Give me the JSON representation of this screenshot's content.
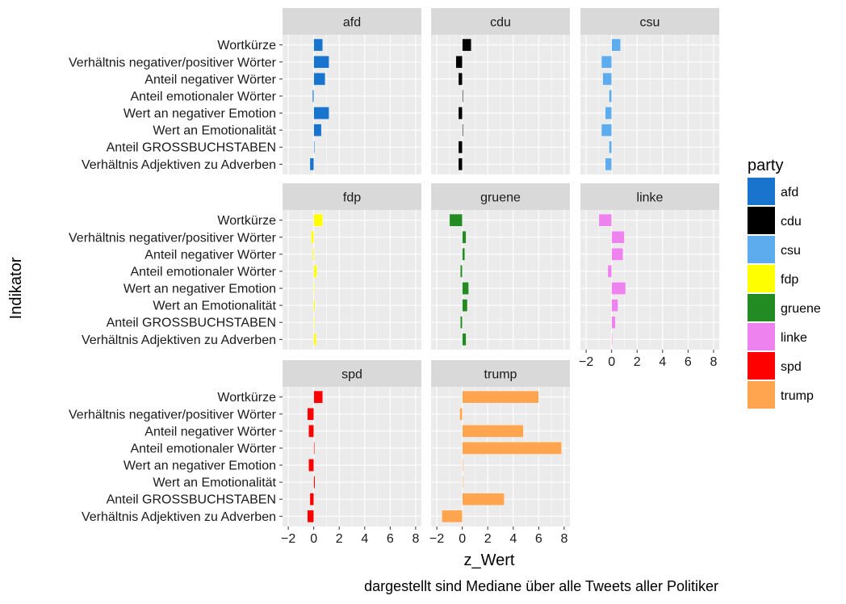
{
  "chart_data": {
    "type": "bar",
    "orientation": "horizontal",
    "xlabel": "z_Wert",
    "ylabel": "Indikator",
    "caption": "dargestellt sind Mediane über alle Tweets aller Politiker",
    "xlim": [
      -2,
      8
    ],
    "xticks": [
      -2,
      0,
      2,
      4,
      6,
      8
    ],
    "xtick_labels": [
      "−2",
      "0",
      "2",
      "4",
      "6",
      "8"
    ],
    "grid": true,
    "legend": {
      "title": "party",
      "position": "right"
    },
    "categories": [
      "Wortkürze",
      "Verhältnis negativer/positiver Wörter",
      "Anteil negativer Wörter",
      "Anteil emotionaler Wörter",
      "Wert an negativer Emotion",
      "Wert an Emotionalität",
      "Anteil GROSSBUCHSTABEN",
      "Verhältnis Adjektiven zu Adverben"
    ],
    "panels": [
      {
        "name": "afd",
        "color": "#1874CD",
        "values": [
          0.7,
          1.2,
          0.9,
          -0.1,
          1.2,
          0.6,
          0.05,
          -0.3
        ]
      },
      {
        "name": "cdu",
        "color": "#000000",
        "values": [
          0.7,
          -0.5,
          -0.3,
          0.02,
          -0.3,
          0.03,
          -0.3,
          -0.3
        ]
      },
      {
        "name": "csu",
        "color": "#5CACEE",
        "values": [
          0.7,
          -0.8,
          -0.7,
          -0.2,
          -0.5,
          -0.8,
          -0.2,
          -0.5
        ]
      },
      {
        "name": "fdp",
        "color": "#FFFF00",
        "values": [
          0.7,
          -0.2,
          -0.1,
          0.25,
          0.05,
          0.1,
          0.05,
          0.2
        ]
      },
      {
        "name": "gruene",
        "color": "#228B22",
        "values": [
          -1.0,
          0.3,
          0.2,
          -0.15,
          0.5,
          0.4,
          -0.15,
          0.3
        ]
      },
      {
        "name": "linke",
        "color": "#EE82EE",
        "values": [
          -1.0,
          1.0,
          0.9,
          -0.3,
          1.1,
          0.5,
          0.3,
          0.05
        ]
      },
      {
        "name": "spd",
        "color": "#FF0000",
        "values": [
          0.7,
          -0.5,
          -0.4,
          0.05,
          -0.4,
          0.1,
          -0.3,
          -0.5
        ]
      },
      {
        "name": "trump",
        "color": "#FFA54F",
        "values": [
          6.0,
          -0.2,
          4.8,
          7.8,
          0.0,
          0.0,
          3.3,
          -1.6
        ]
      }
    ]
  }
}
